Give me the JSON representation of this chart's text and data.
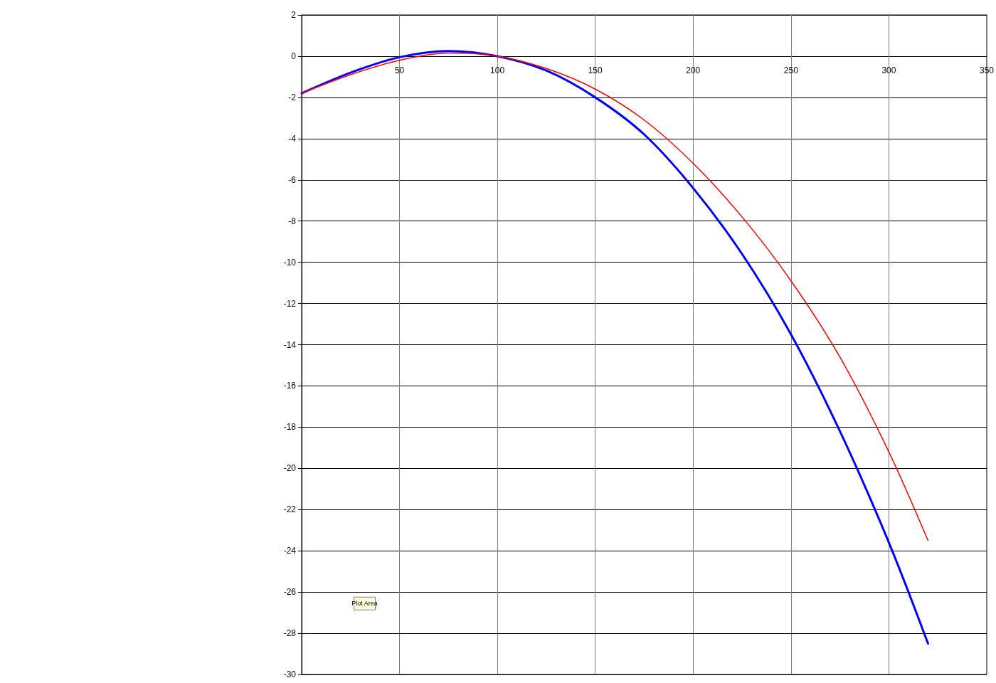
{
  "chart_data": {
    "type": "line",
    "x": [
      0,
      25,
      50,
      75,
      100,
      125,
      150,
      175,
      200,
      225,
      250,
      275,
      300,
      320
    ],
    "series": [
      {
        "color": "#0000ff",
        "values": [
          -1.8,
          -0.8,
          -0.05,
          0.25,
          0,
          -0.7,
          -2.0,
          -3.8,
          -6.4,
          -9.6,
          -13.5,
          -18.2,
          -23.6,
          -28.5
        ]
      },
      {
        "color": "#ff0000",
        "values": [
          -1.8,
          -0.9,
          -0.2,
          0.15,
          0,
          -0.6,
          -1.6,
          -3.1,
          -5.2,
          -7.8,
          -10.9,
          -14.6,
          -19.2,
          -23.5
        ]
      }
    ],
    "xlim": [
      0,
      350
    ],
    "xticks": [
      50,
      100,
      150,
      200,
      250,
      300,
      350
    ],
    "ylim": [
      -30,
      2
    ],
    "yticks": [
      -30,
      -28,
      -26,
      -24,
      -22,
      -20,
      -18,
      -16,
      -14,
      -12,
      -10,
      -8,
      -6,
      -4,
      -2,
      0,
      2
    ],
    "grid": true,
    "marker": "none",
    "line_style": "solid",
    "annotations": [
      "Plot Area"
    ]
  }
}
